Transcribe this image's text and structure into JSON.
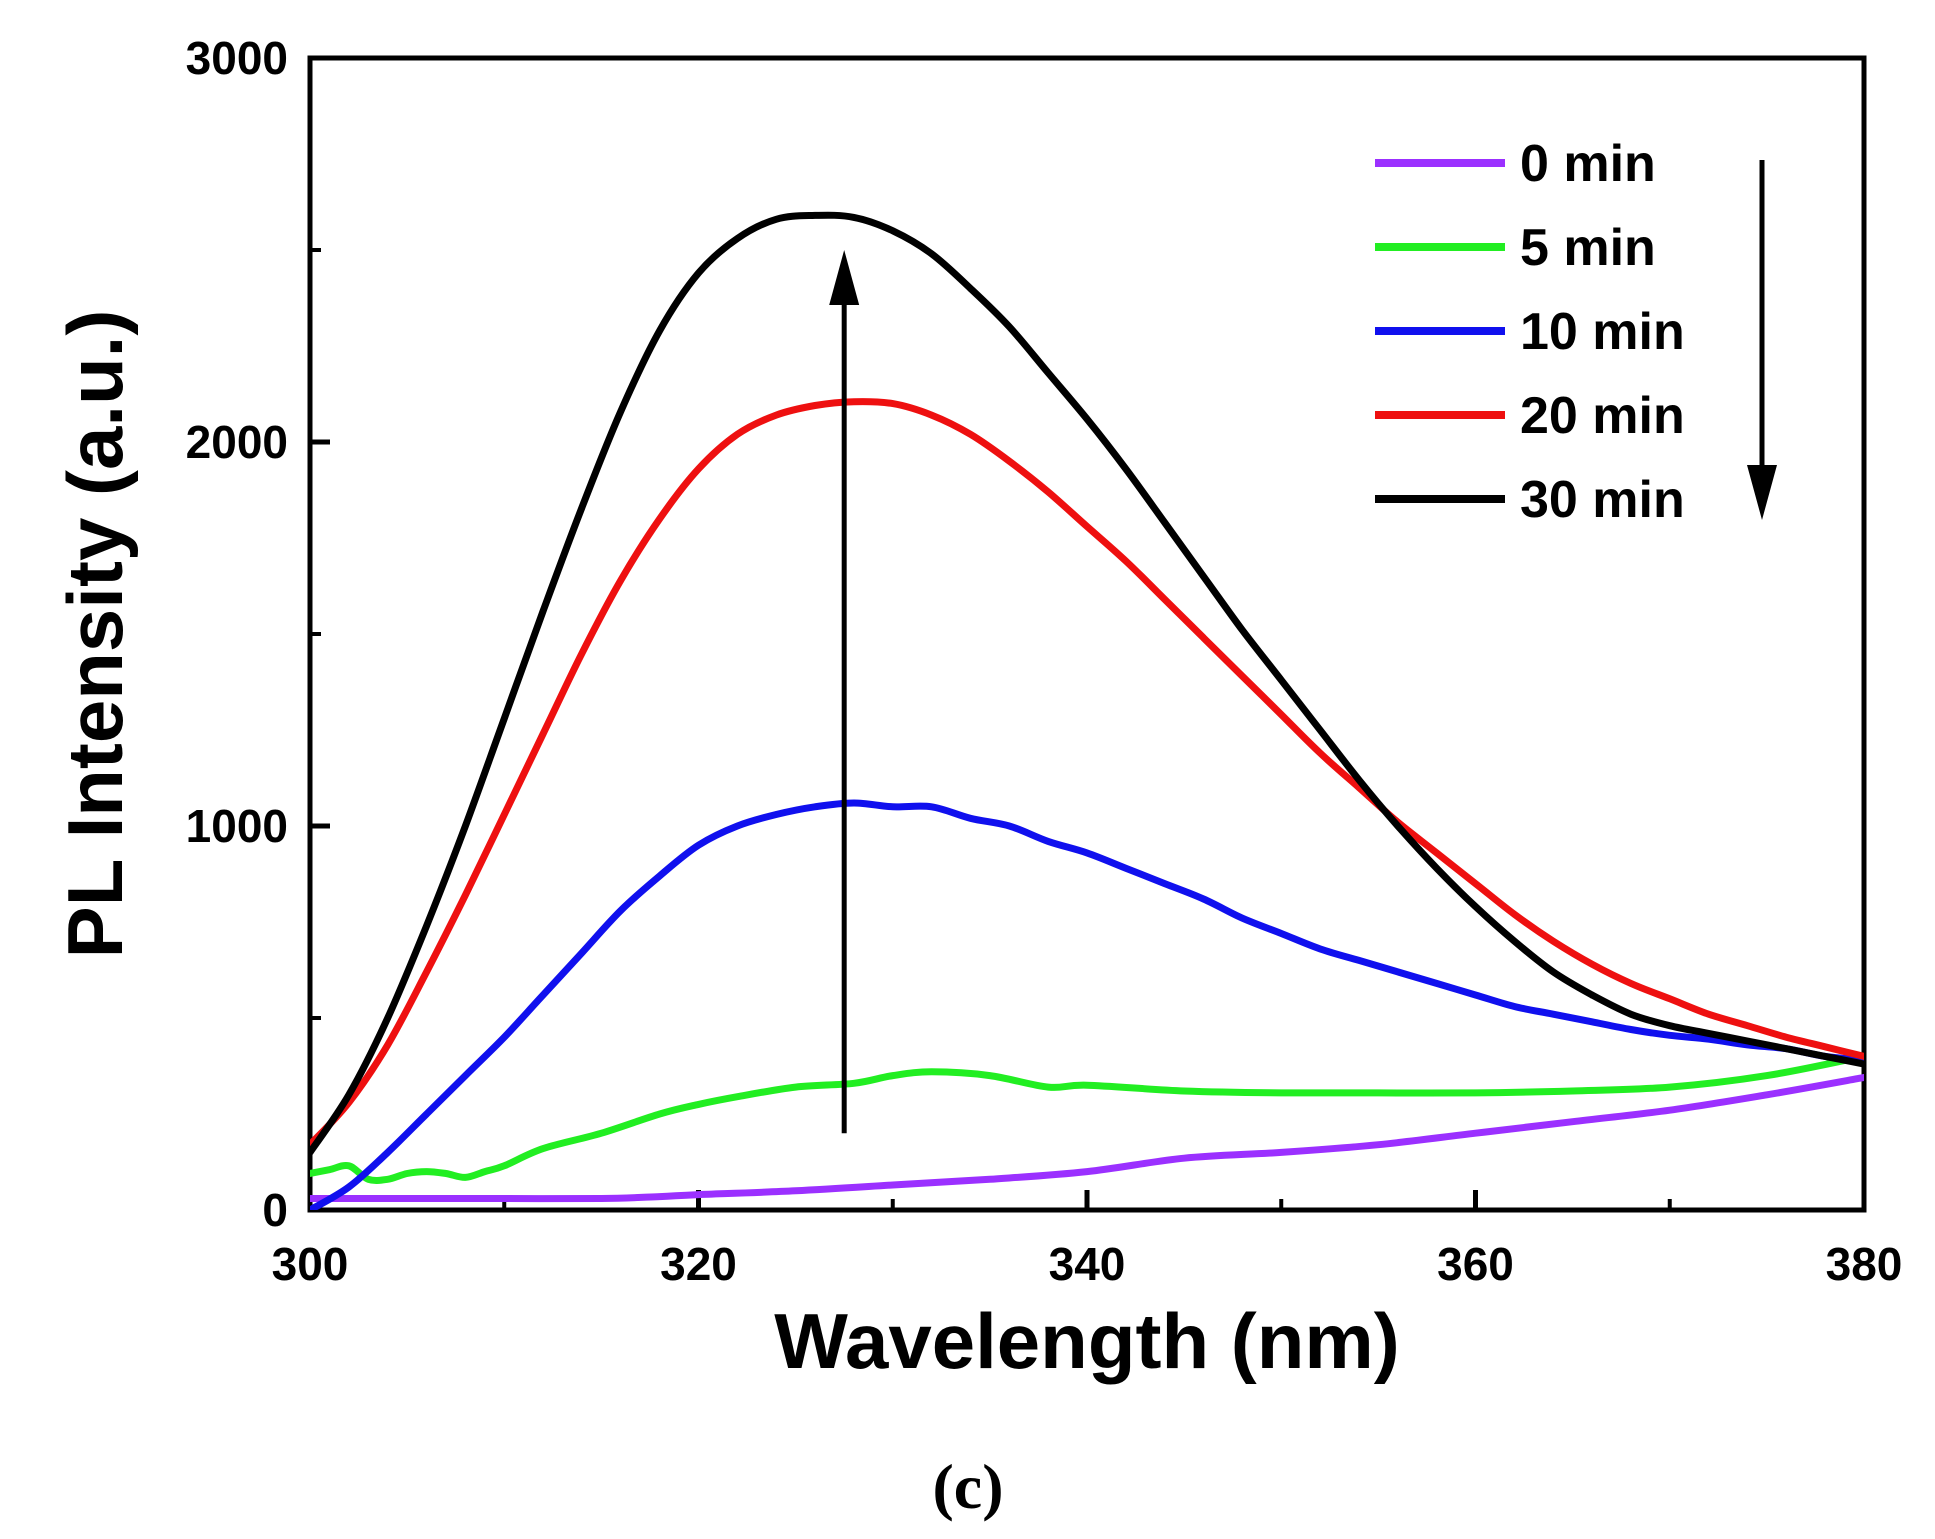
{
  "chart_data": {
    "type": "line",
    "title": "",
    "xlabel": "Wavelength (nm)",
    "ylabel": "PL Intensity (a.u.)",
    "xlim": [
      300,
      380
    ],
    "ylim": [
      0,
      3000
    ],
    "x_ticks": [
      300,
      320,
      340,
      360,
      380
    ],
    "y_ticks": [
      0,
      1000,
      2000,
      3000
    ],
    "x_tick_labels": [
      "300",
      "320",
      "340",
      "360",
      "380"
    ],
    "y_tick_labels": [
      "0",
      "1000",
      "2000",
      "3000"
    ],
    "legend_position": "top-right",
    "panel_label": "(c)",
    "annotations": [
      {
        "type": "arrow",
        "direction": "up",
        "x": 327.5,
        "y_from": 200,
        "y_to": 2500
      },
      {
        "type": "arrow",
        "direction": "down",
        "note": "beside legend, pointing from 0 min toward 30 min"
      }
    ],
    "series": [
      {
        "name": "0 min",
        "color": "#9b30ff",
        "x": [
          300,
          305,
          310,
          315,
          318,
          320,
          325,
          330,
          335,
          340,
          345,
          350,
          355,
          360,
          365,
          370,
          375,
          380
        ],
        "y": [
          30,
          30,
          30,
          30,
          35,
          40,
          50,
          65,
          80,
          100,
          135,
          150,
          170,
          200,
          230,
          260,
          300,
          345
        ]
      },
      {
        "name": "5 min",
        "color": "#22ee22",
        "x": [
          300,
          301,
          302,
          303,
          304,
          305,
          306,
          307,
          308,
          309,
          310,
          312,
          315,
          318,
          320,
          322,
          325,
          328,
          330,
          332,
          335,
          338,
          340,
          345,
          350,
          355,
          360,
          365,
          370,
          375,
          380
        ],
        "y": [
          95,
          105,
          115,
          80,
          80,
          95,
          100,
          95,
          85,
          100,
          115,
          160,
          200,
          250,
          275,
          295,
          320,
          330,
          350,
          360,
          350,
          320,
          325,
          310,
          305,
          305,
          305,
          310,
          320,
          350,
          400
        ]
      },
      {
        "name": "10 min",
        "color": "#1010ee",
        "x": [
          300,
          302,
          304,
          306,
          308,
          310,
          312,
          314,
          316,
          318,
          320,
          322,
          324,
          326,
          328,
          330,
          332,
          334,
          336,
          338,
          340,
          342,
          344,
          346,
          348,
          350,
          352,
          354,
          356,
          358,
          360,
          362,
          364,
          366,
          368,
          370,
          372,
          374,
          376,
          378,
          380
        ],
        "y": [
          0,
          60,
          150,
          250,
          350,
          450,
          560,
          670,
          780,
          870,
          950,
          1000,
          1030,
          1050,
          1060,
          1050,
          1050,
          1020,
          1000,
          960,
          930,
          890,
          850,
          810,
          760,
          720,
          680,
          650,
          620,
          590,
          560,
          530,
          510,
          490,
          470,
          455,
          445,
          430,
          420,
          400,
          390
        ]
      },
      {
        "name": "20 min",
        "color": "#ee1010",
        "x": [
          300,
          302,
          304,
          306,
          308,
          310,
          312,
          314,
          316,
          318,
          320,
          322,
          324,
          326,
          328,
          330,
          332,
          334,
          336,
          338,
          340,
          342,
          344,
          346,
          348,
          350,
          352,
          354,
          356,
          358,
          360,
          362,
          364,
          366,
          368,
          370,
          372,
          374,
          376,
          378,
          380
        ],
        "y": [
          170,
          280,
          430,
          620,
          820,
          1030,
          1240,
          1450,
          1640,
          1800,
          1930,
          2020,
          2070,
          2095,
          2105,
          2100,
          2070,
          2020,
          1950,
          1870,
          1780,
          1690,
          1590,
          1490,
          1390,
          1290,
          1190,
          1100,
          1010,
          930,
          850,
          770,
          700,
          640,
          590,
          550,
          510,
          480,
          450,
          425,
          400
        ]
      },
      {
        "name": "30 min",
        "color": "#000000",
        "x": [
          300,
          302,
          304,
          306,
          308,
          310,
          312,
          314,
          316,
          318,
          320,
          322,
          324,
          326,
          328,
          330,
          332,
          334,
          336,
          338,
          340,
          342,
          344,
          346,
          348,
          350,
          352,
          354,
          356,
          358,
          360,
          362,
          364,
          366,
          368,
          370,
          372,
          374,
          376,
          378,
          380
        ],
        "y": [
          150,
          300,
          500,
          740,
          1000,
          1280,
          1560,
          1830,
          2080,
          2290,
          2440,
          2530,
          2580,
          2590,
          2585,
          2550,
          2490,
          2400,
          2300,
          2180,
          2060,
          1930,
          1790,
          1650,
          1510,
          1380,
          1250,
          1120,
          1000,
          890,
          790,
          700,
          620,
          560,
          510,
          480,
          460,
          440,
          420,
          400,
          380
        ]
      }
    ]
  }
}
